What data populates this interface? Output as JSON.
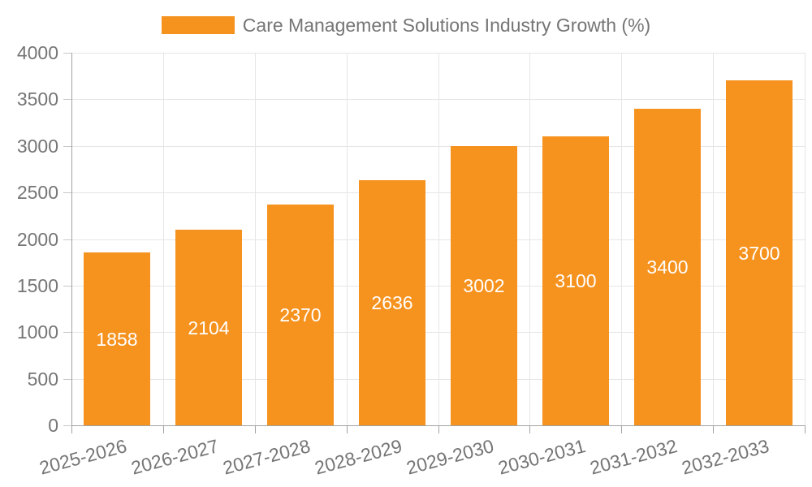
{
  "legend": {
    "label": "Care Management Solutions Industry Growth (%)"
  },
  "chart_data": {
    "type": "bar",
    "title": "Care Management Solutions Industry Growth (%)",
    "categories": [
      "2025-2026",
      "2026-2027",
      "2027-2028",
      "2028-2029",
      "2029-2030",
      "2030-2031",
      "2031-2032",
      "2032-2033"
    ],
    "values": [
      1858,
      2104,
      2370,
      2636,
      3002,
      3100,
      3400,
      3700
    ],
    "xlabel": "",
    "ylabel": "",
    "ylim": [
      0,
      4000
    ],
    "ytick_step": 500,
    "ytick_labels": [
      "0",
      "500",
      "1000",
      "1500",
      "2000",
      "2500",
      "3000",
      "3500",
      "4000"
    ],
    "grid": true,
    "legend_position": "top",
    "bar_labels_inside": true,
    "colors": {
      "bar": "#F6921E",
      "axis_text": "#757575",
      "gridline": "#E6E6E6",
      "axis_line": "#A3A3A3",
      "tick": "#C8C8C8",
      "value_label": "#FFFFFF"
    }
  }
}
